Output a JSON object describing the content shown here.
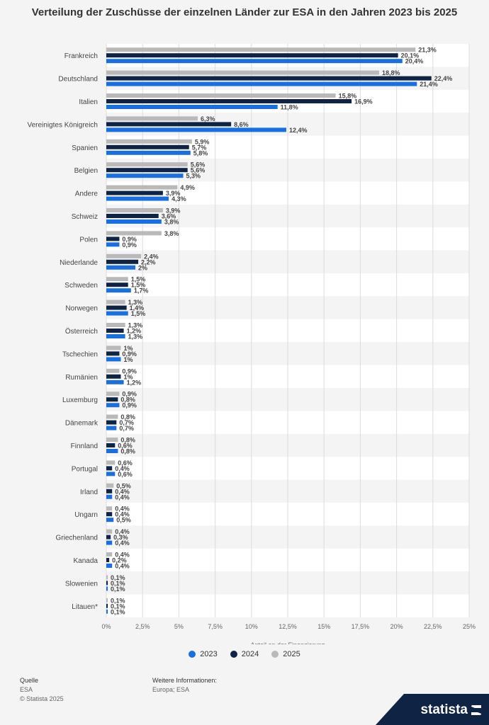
{
  "title": "Verteilung der Zuschüsse der einzelnen Länder zur ESA in den Jahren 2023 bis 2025",
  "legend": [
    {
      "label": "2023",
      "color": "#1a6fe0"
    },
    {
      "label": "2024",
      "color": "#0f2344"
    },
    {
      "label": "2025",
      "color": "#b9b9b9"
    }
  ],
  "footer": {
    "source_heading": "Quelle",
    "source_text": "ESA",
    "copyright": "© Statista 2025",
    "info_heading": "Weitere Informationen:",
    "info_text": "Europa; ESA",
    "brand": "statista"
  },
  "chart_data": {
    "type": "bar",
    "orientation": "horizontal",
    "xlabel": "Anteil an der Finanzierung",
    "xlim": [
      0,
      25
    ],
    "ticks": [
      "0%",
      "2,5%",
      "5%",
      "7,5%",
      "10%",
      "12,5%",
      "15%",
      "17,5%",
      "20%",
      "22,5%",
      "25%"
    ],
    "categories": [
      "Frankreich",
      "Deutschland",
      "Italien",
      "Vereinigtes Königreich",
      "Spanien",
      "Belgien",
      "Andere",
      "Schweiz",
      "Polen",
      "Niederlande",
      "Schweden",
      "Norwegen",
      "Österreich",
      "Tschechien",
      "Rumänien",
      "Luxemburg",
      "Dänemark",
      "Finnland",
      "Portugal",
      "Irland",
      "Ungarn",
      "Griechenland",
      "Kanada",
      "Slowenien",
      "Litauen*"
    ],
    "series": [
      {
        "name": "2025",
        "color": "#b9b9b9",
        "values": [
          21.3,
          18.8,
          15.8,
          6.3,
          5.9,
          5.6,
          4.9,
          3.9,
          3.8,
          2.4,
          1.5,
          1.3,
          1.3,
          1,
          0.9,
          0.9,
          0.8,
          0.8,
          0.6,
          0.5,
          0.4,
          0.4,
          0.4,
          0.1,
          0.1
        ],
        "labels": [
          "21,3%",
          "18,8%",
          "15,8%",
          "6,3%",
          "5,9%",
          "5,6%",
          "4,9%",
          "3,9%",
          "3,8%",
          "2,4%",
          "1,5%",
          "1,3%",
          "1,3%",
          "1%",
          "0,9%",
          "0,9%",
          "0,8%",
          "0,8%",
          "0,6%",
          "0,5%",
          "0,4%",
          "0,4%",
          "0,4%",
          "0,1%",
          "0,1%"
        ]
      },
      {
        "name": "2024",
        "color": "#0f2344",
        "values": [
          20.1,
          22.4,
          16.9,
          8.6,
          5.7,
          5.6,
          3.9,
          3.6,
          0.9,
          2.2,
          1.5,
          1.4,
          1.2,
          0.9,
          1,
          0.8,
          0.7,
          0.6,
          0.4,
          0.4,
          0.4,
          0.3,
          0.2,
          0.1,
          0.1
        ],
        "labels": [
          "20,1%",
          "22,4%",
          "16,9%",
          "8,6%",
          "5,7%",
          "5,6%",
          "3,9%",
          "3,6%",
          "0,9%",
          "2,2%",
          "1,5%",
          "1,4%",
          "1,2%",
          "0,9%",
          "1%",
          "0,8%",
          "0,7%",
          "0,6%",
          "0,4%",
          "0,4%",
          "0,4%",
          "0,3%",
          "0,2%",
          "0,1%",
          "0,1%"
        ]
      },
      {
        "name": "2023",
        "color": "#1a6fe0",
        "values": [
          20.4,
          21.4,
          11.8,
          12.4,
          5.8,
          5.3,
          4.3,
          3.8,
          0.9,
          2,
          1.7,
          1.5,
          1.3,
          1,
          1.2,
          0.9,
          0.7,
          0.8,
          0.6,
          0.4,
          0.5,
          0.4,
          0.4,
          0.1,
          0.1
        ],
        "labels": [
          "20,4%",
          "21,4%",
          "11,8%",
          "12,4%",
          "5,8%",
          "5,3%",
          "4,3%",
          "3,8%",
          "0,9%",
          "2%",
          "1,7%",
          "1,5%",
          "1,3%",
          "1%",
          "1,2%",
          "0,9%",
          "0,7%",
          "0,8%",
          "0,6%",
          "0,4%",
          "0,5%",
          "0,4%",
          "0,4%",
          "0,1%",
          "0,1%"
        ]
      }
    ]
  }
}
